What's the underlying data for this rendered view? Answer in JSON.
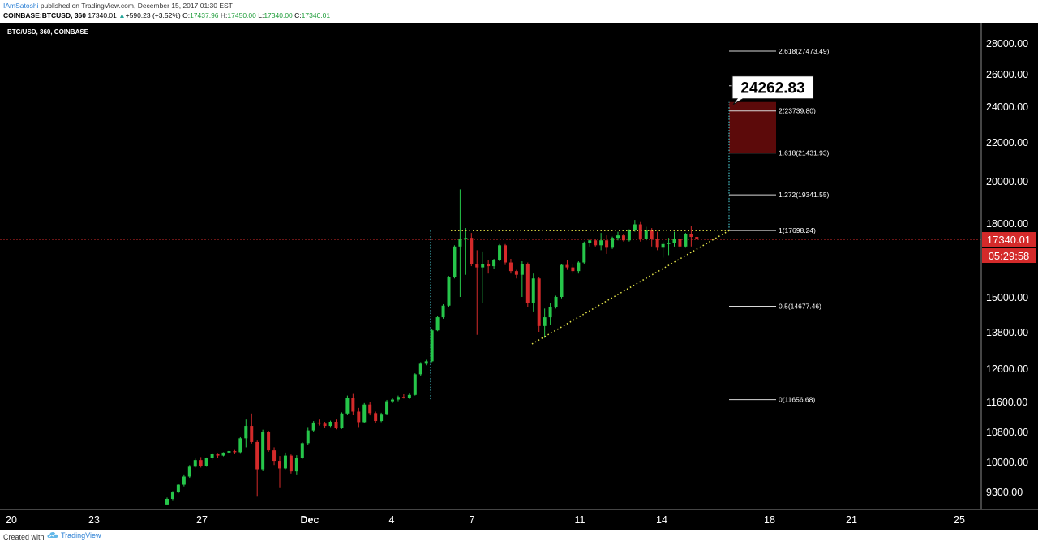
{
  "header": {
    "author": "IAmSatoshi",
    "published": " published on TradingView.com, December 15, 2017 01:30 EST",
    "symbol": "COINBASE:BTCUSD, 360",
    "last": "17340.01",
    "change_arrow": "▲",
    "change": "+590.23 (+3.52%)",
    "o_label": "O:",
    "o_val": "17437.96",
    "h_label": "H:",
    "h_val": "17450.00",
    "l_label": "L:",
    "l_val": "17340.00",
    "c_label": "C:",
    "c_val": "17340.01"
  },
  "footer": {
    "created_with": "Created with",
    "brand": "TradingView",
    "logo_icon": "tradingview-cloud-icon"
  },
  "colors": {
    "background": "#000000",
    "up": "#26c64a",
    "down": "#d42a2a",
    "price_line": "#d42a2a",
    "target_box": "#5c0a0a",
    "triangle": "#e8e84a",
    "projection": "#45c1c8"
  },
  "chart_data": {
    "type": "candlestick",
    "pair_label": "BTC/USD, 360, COINBASE",
    "x_ticks": [
      "20",
      "23",
      "27",
      "Dec",
      "4",
      "7",
      "11",
      "14",
      "18",
      "21",
      "25"
    ],
    "y_ticks": [
      "28000.00",
      "26000.00",
      "24000.00",
      "22000.00",
      "20000.00",
      "18000.00",
      "15000.00",
      "13800.00",
      "12600.00",
      "11600.00",
      "10800.00",
      "10000.00",
      "9300.00"
    ],
    "current_price": "17340.01",
    "countdown": "05:29:58",
    "target_label": "24262.83",
    "fib_levels": [
      {
        "label": "2.618(27473.49)",
        "value": 27473.49
      },
      {
        "label": "3.11)",
        "value": 25263.11
      },
      {
        "label": "2(23739.80)",
        "value": 23739.8
      },
      {
        "label": "1.618(21431.93)",
        "value": 21431.93
      },
      {
        "label": "1.272(19341.55)",
        "value": 19341.55
      },
      {
        "label": "1(17698.24)",
        "value": 17698.24
      },
      {
        "label": "0.5(14677.46)",
        "value": 14677.46
      },
      {
        "label": "0(11656.68)",
        "value": 11656.68
      }
    ],
    "triangle": {
      "resistance": 17698.24,
      "support_start": 13400,
      "support_end": 17698.24
    },
    "target_zone": [
      21431.93,
      24262.83
    ],
    "candles": [
      [
        9000,
        9160,
        8980,
        9130
      ],
      [
        9130,
        9310,
        9100,
        9280
      ],
      [
        9280,
        9480,
        9260,
        9460
      ],
      [
        9460,
        9700,
        9420,
        9650
      ],
      [
        9650,
        9920,
        9620,
        9880
      ],
      [
        9880,
        10080,
        9860,
        10040
      ],
      [
        10040,
        10120,
        9860,
        9900
      ],
      [
        9900,
        10110,
        9880,
        10090
      ],
      [
        10090,
        10240,
        10050,
        10200
      ],
      [
        10200,
        10230,
        10090,
        10160
      ],
      [
        10160,
        10250,
        10140,
        10240
      ],
      [
        10240,
        10300,
        10190,
        10280
      ],
      [
        10280,
        10310,
        10200,
        10250
      ],
      [
        10250,
        10650,
        10230,
        10620
      ],
      [
        10620,
        11120,
        10380,
        10950
      ],
      [
        10950,
        11280,
        10480,
        10520
      ],
      [
        10520,
        10580,
        9200,
        9820
      ],
      [
        9820,
        10850,
        9780,
        10780
      ],
      [
        10780,
        10820,
        10260,
        10300
      ],
      [
        10300,
        10380,
        9920,
        10020
      ],
      [
        10020,
        10150,
        9400,
        9840
      ],
      [
        9840,
        10240,
        9820,
        10160
      ],
      [
        10160,
        10190,
        9720,
        9770
      ],
      [
        9770,
        10170,
        9700,
        10100
      ],
      [
        10100,
        10520,
        10070,
        10490
      ],
      [
        10490,
        10920,
        10450,
        10830
      ],
      [
        10830,
        11080,
        10780,
        11040
      ],
      [
        11040,
        11120,
        10960,
        11010
      ],
      [
        11010,
        11060,
        10890,
        10950
      ],
      [
        10950,
        11090,
        10920,
        11060
      ],
      [
        11060,
        11120,
        10860,
        10900
      ],
      [
        10900,
        11310,
        10870,
        11280
      ],
      [
        11280,
        11780,
        11240,
        11700
      ],
      [
        11700,
        11830,
        11250,
        11330
      ],
      [
        11330,
        11430,
        10920,
        11050
      ],
      [
        11050,
        11560,
        11020,
        11520
      ],
      [
        11520,
        11580,
        11230,
        11290
      ],
      [
        11290,
        11330,
        11030,
        11080
      ],
      [
        11080,
        11300,
        11050,
        11270
      ],
      [
        11270,
        11650,
        11240,
        11610
      ],
      [
        11610,
        11700,
        11560,
        11660
      ],
      [
        11660,
        11780,
        11610,
        11740
      ],
      [
        11740,
        11820,
        11690,
        11720
      ],
      [
        11720,
        11840,
        11680,
        11800
      ],
      [
        11800,
        12450,
        11780,
        12420
      ],
      [
        12420,
        12800,
        12380,
        12750
      ],
      [
        12750,
        12880,
        12700,
        12830
      ],
      [
        12830,
        13900,
        12800,
        13850
      ],
      [
        13850,
        14350,
        13820,
        14300
      ],
      [
        14300,
        14750,
        14250,
        14700
      ],
      [
        14700,
        15850,
        14650,
        15800
      ],
      [
        15800,
        17100,
        15750,
        17050
      ],
      [
        17050,
        19600,
        15000,
        17350
      ],
      [
        17350,
        17800,
        15900,
        17400
      ],
      [
        17400,
        17600,
        16250,
        16350
      ],
      [
        16350,
        16900,
        13700,
        16200
      ],
      [
        16200,
        16850,
        14800,
        16350
      ],
      [
        16350,
        16500,
        15950,
        16250
      ],
      [
        16250,
        16550,
        16150,
        16500
      ],
      [
        16500,
        17150,
        16450,
        17100
      ],
      [
        17100,
        17150,
        16300,
        16400
      ],
      [
        16400,
        16550,
        15950,
        16050
      ],
      [
        16050,
        16100,
        15750,
        15900
      ],
      [
        15900,
        16450,
        15000,
        16350
      ],
      [
        16350,
        16400,
        14650,
        14800
      ],
      [
        14800,
        15950,
        14500,
        15750
      ],
      [
        15750,
        15800,
        13800,
        14000
      ],
      [
        14000,
        14600,
        13600,
        14300
      ],
      [
        14300,
        14800,
        14050,
        14650
      ],
      [
        14650,
        15050,
        14600,
        15000
      ],
      [
        15000,
        16350,
        14950,
        16300
      ],
      [
        16300,
        16500,
        16100,
        16200
      ],
      [
        16200,
        16350,
        15950,
        16050
      ],
      [
        16050,
        16450,
        15950,
        16400
      ],
      [
        16400,
        17250,
        16350,
        17200
      ],
      [
        17200,
        17350,
        17050,
        17300
      ],
      [
        17300,
        17350,
        17050,
        17100
      ],
      [
        17100,
        17600,
        16900,
        17300
      ],
      [
        17300,
        17500,
        16750,
        17000
      ],
      [
        17000,
        17450,
        16950,
        17400
      ],
      [
        17400,
        17650,
        17300,
        17500
      ],
      [
        17500,
        17550,
        17250,
        17300
      ],
      [
        17300,
        17750,
        17250,
        17700
      ],
      [
        17700,
        18150,
        17650,
        17950
      ],
      [
        17950,
        18050,
        17250,
        17350
      ],
      [
        17350,
        17850,
        17300,
        17700
      ],
      [
        17700,
        17800,
        17050,
        17350
      ],
      [
        17350,
        17650,
        16900,
        17000
      ],
      [
        17000,
        17250,
        16600,
        17150
      ],
      [
        17150,
        17400,
        16700,
        17200
      ],
      [
        17200,
        17650,
        17050,
        17350
      ],
      [
        17350,
        17550,
        16950,
        17050
      ],
      [
        17050,
        17600,
        17000,
        17550
      ],
      [
        17550,
        17900,
        17050,
        17437.96
      ],
      [
        17437.96,
        17450,
        17340,
        17340.01
      ]
    ]
  }
}
